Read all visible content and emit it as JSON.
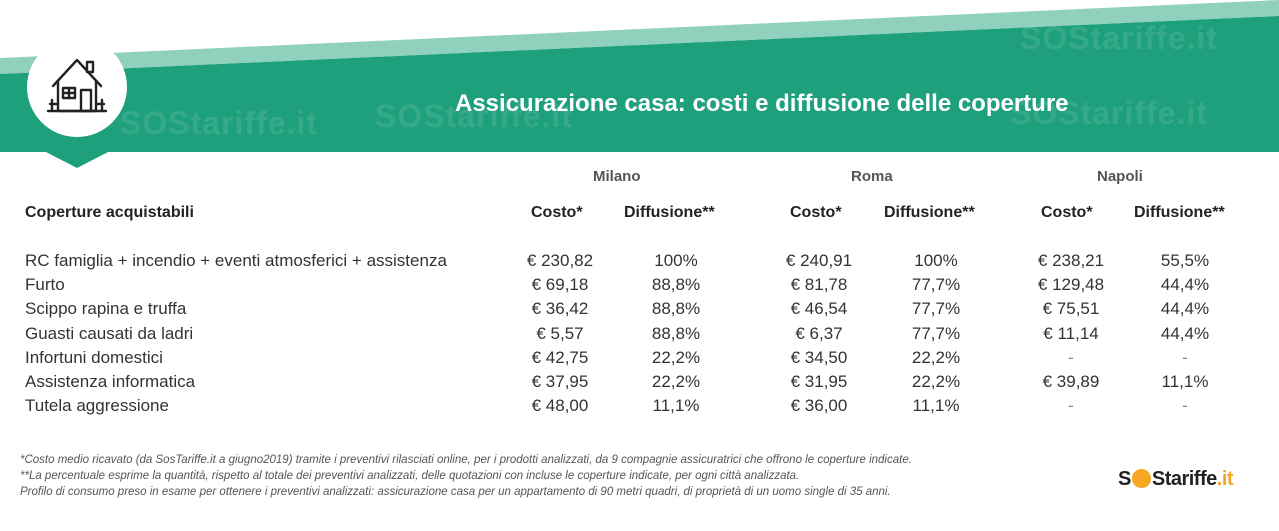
{
  "title": "Assicurazione casa: costi e diffusione delle coperture",
  "icon": "house-icon",
  "colors": {
    "teal": "#1fa07c",
    "teal_light": "#8fd1bd",
    "white": "#ffffff"
  },
  "watermark": "SOStariffe.it",
  "logo": {
    "prefix": "S",
    "mid": "S",
    "suffix": "tariffe",
    "dot": ".it"
  },
  "chart_data": {
    "type": "table",
    "title": "Assicurazione casa: costi e diffusione delle coperture",
    "row_header": "Coperture acquistabili",
    "cities": [
      "Milano",
      "Roma",
      "Napoli"
    ],
    "columns": [
      "Costo*",
      "Diffusione**"
    ],
    "rows": [
      {
        "label": "RC famiglia + incendio + eventi atmosferici + assistenza",
        "values": [
          "€ 230,82",
          "100%",
          "€ 240,91",
          "100%",
          "€ 238,21",
          "55,5%"
        ]
      },
      {
        "label": "Furto",
        "values": [
          "€ 69,18",
          "88,8%",
          "€ 81,78",
          "77,7%",
          "€ 129,48",
          "44,4%"
        ]
      },
      {
        "label": "Scippo rapina e truffa",
        "values": [
          "€ 36,42",
          "88,8%",
          "€ 46,54",
          "77,7%",
          "€ 75,51",
          "44,4%"
        ]
      },
      {
        "label": "Guasti causati da ladri",
        "values": [
          "€ 5,57",
          "88,8%",
          "€ 6,37",
          "77,7%",
          "€ 11,14",
          "44,4%"
        ]
      },
      {
        "label": "Infortuni domestici",
        "values": [
          "€ 42,75",
          "22,2%",
          "€ 34,50",
          "22,2%",
          "-",
          "-"
        ]
      },
      {
        "label": "Assistenza informatica",
        "values": [
          "€ 37,95",
          "22,2%",
          "€ 31,95",
          "22,2%",
          "€ 39,89",
          "11,1%"
        ]
      },
      {
        "label": "Tutela aggressione",
        "values": [
          "€ 48,00",
          "11,1%",
          "€ 36,00",
          "11,1%",
          "-",
          "-"
        ]
      }
    ]
  },
  "notes": [
    "*Costo medio ricavato (da SosTariffe.it a giugno2019) tramite i preventivi rilasciati online, per i prodotti analizzati, da 9 compagnie assicuratrici che offrono le coperture indicate.",
    "**La percentuale esprime la quantità,  rispetto al totale dei preventivi analizzati, delle quotazioni con incluse le coperture indicate, per ogni città analizzata.",
    "Profilo di consumo preso in esame per ottenere i preventivi analizzati: assicurazione casa per un appartamento di 90 metri quadri, di proprietà di un uomo single di 35 anni."
  ]
}
